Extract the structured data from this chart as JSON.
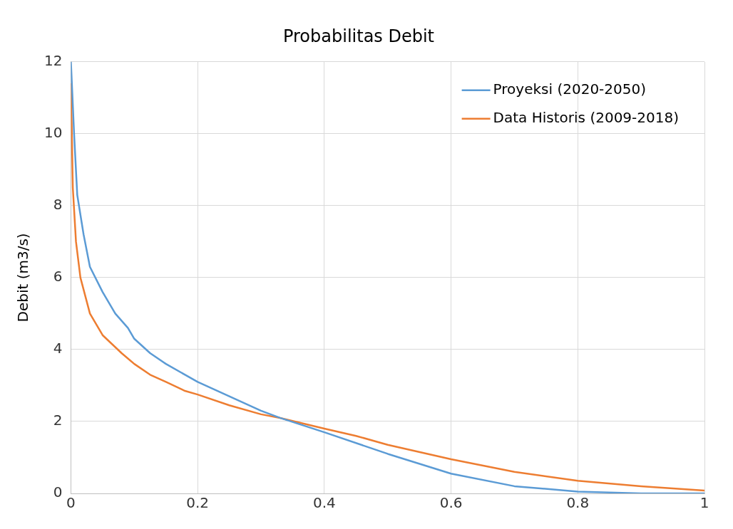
{
  "chart_data": {
    "type": "line",
    "title": "Probabilitas Debit",
    "ylabel": "Debit (m3/s)",
    "xlim": [
      0,
      1
    ],
    "xticks": [
      0,
      0.2,
      0.4,
      0.6,
      0.8,
      1
    ],
    "ylim": [
      0,
      12
    ],
    "yticks": [
      0,
      2,
      4,
      6,
      8,
      10,
      12
    ],
    "grid": true,
    "legend": "top right",
    "marker": "none",
    "series": [
      {
        "name": "Proyeksi (2020-2050)",
        "color": "#5b9bd5",
        "x": [
          0,
          0.005,
          0.01,
          0.02,
          0.03,
          0.05,
          0.07,
          0.09,
          0.1,
          0.125,
          0.15,
          0.2,
          0.25,
          0.3,
          0.33,
          0.4,
          0.5,
          0.6,
          0.7,
          0.8,
          0.9,
          1
        ],
        "values": [
          12,
          10,
          8.3,
          7.2,
          6.3,
          5.6,
          5.0,
          4.6,
          4.3,
          3.9,
          3.6,
          3.1,
          2.7,
          2.3,
          2.1,
          1.7,
          1.1,
          0.55,
          0.2,
          0.05,
          0,
          0
        ]
      },
      {
        "name": "Data Historis (2009-2018)",
        "color": "#ed7d31",
        "x": [
          0,
          0.003,
          0.008,
          0.015,
          0.03,
          0.05,
          0.08,
          0.1,
          0.125,
          0.15,
          0.18,
          0.2,
          0.25,
          0.3,
          0.33,
          0.4,
          0.45,
          0.5,
          0.6,
          0.7,
          0.8,
          0.9,
          1
        ],
        "values": [
          11.4,
          8.5,
          7.0,
          6.0,
          5.0,
          4.4,
          3.9,
          3.6,
          3.3,
          3.1,
          2.85,
          2.75,
          2.45,
          2.2,
          2.1,
          1.8,
          1.6,
          1.35,
          0.95,
          0.6,
          0.35,
          0.2,
          0.08
        ]
      }
    ]
  }
}
